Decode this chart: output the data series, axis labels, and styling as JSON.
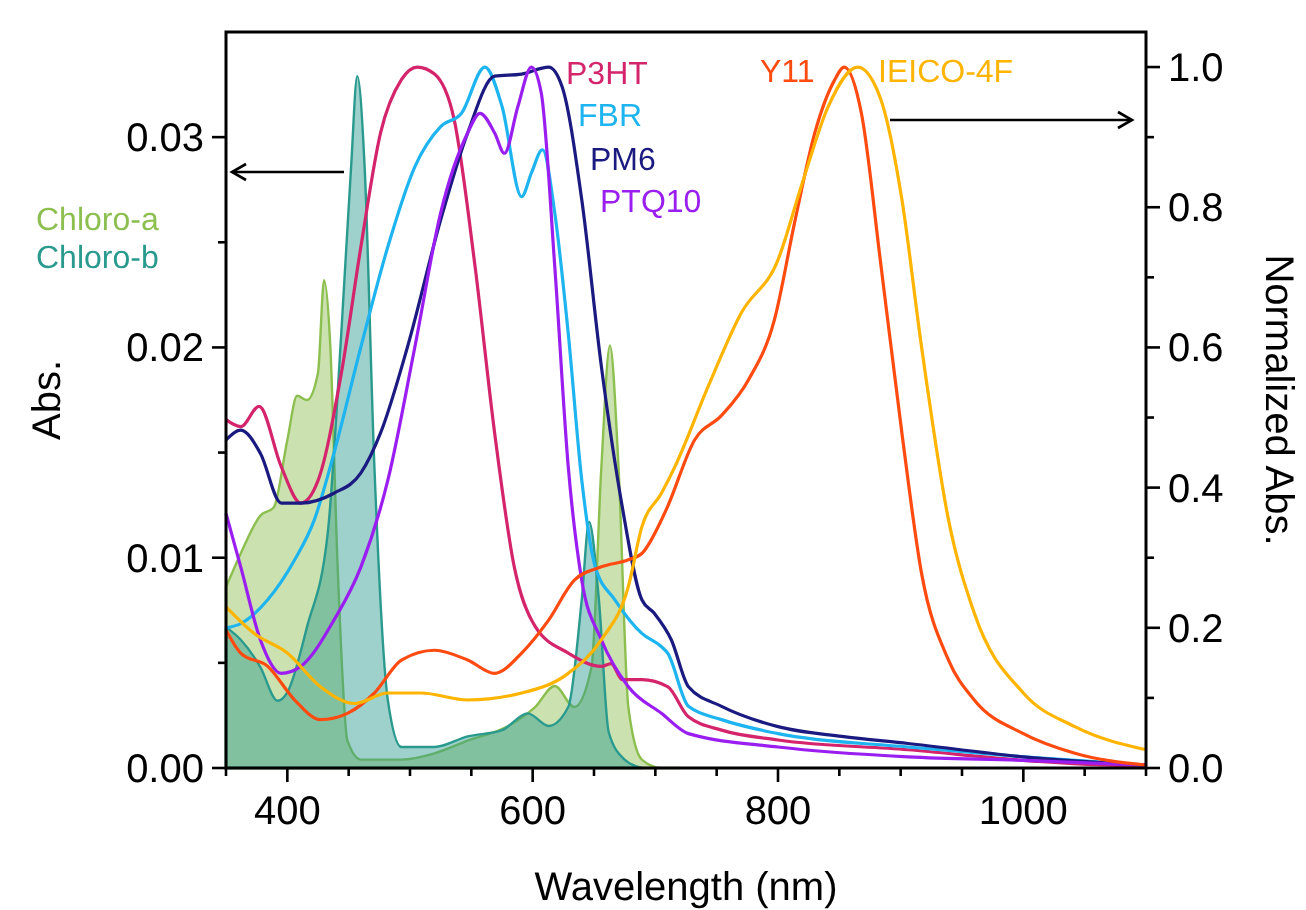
{
  "chart_data": {
    "type": "line",
    "xlabel": "Wavelength (nm)",
    "ylabel": "Abs.",
    "y2label": "Normalized Abs.",
    "xlim": [
      350,
      1100
    ],
    "xticks": [
      {
        "value": 350,
        "label": null
      },
      400,
      {
        "value": 450,
        "label": null
      },
      {
        "value": 500,
        "label": null
      },
      {
        "value": 550,
        "label": null
      },
      600,
      {
        "value": 650,
        "label": null
      },
      {
        "value": 700,
        "label": null
      },
      {
        "value": 750,
        "label": null
      },
      800,
      {
        "value": 850,
        "label": null
      },
      {
        "value": 900,
        "label": null
      },
      {
        "value": 950,
        "label": null
      },
      1000,
      {
        "value": 1050,
        "label": null
      },
      {
        "value": 1100,
        "label": null
      }
    ],
    "ylim": [
      0,
      0.035
    ],
    "yticks": [
      {
        "value": 0,
        "label": "0.00"
      },
      {
        "value": 0.005,
        "label": null
      },
      {
        "value": 0.01,
        "label": "0.01"
      },
      {
        "value": 0.015,
        "label": null
      },
      {
        "value": 0.02,
        "label": "0.02"
      },
      {
        "value": 0.025,
        "label": null
      },
      {
        "value": 0.03,
        "label": "0.03"
      }
    ],
    "y2lim": [
      0,
      1.05
    ],
    "y2ticks": [
      {
        "value": 0,
        "label": "0.0"
      },
      {
        "value": 0.1,
        "label": null
      },
      {
        "value": 0.2,
        "label": "0.2"
      },
      {
        "value": 0.3,
        "label": null
      },
      {
        "value": 0.4,
        "label": "0.4"
      },
      {
        "value": 0.5,
        "label": null
      },
      {
        "value": 0.6,
        "label": "0.6"
      },
      {
        "value": 0.7,
        "label": null
      },
      {
        "value": 0.8,
        "label": "0.8"
      },
      {
        "value": 0.9,
        "label": null
      },
      {
        "value": 1.0,
        "label": "1.0"
      }
    ],
    "grid": false,
    "legend": false,
    "series": [
      {
        "name": "Chloro-a",
        "type": "area",
        "color": "#8cbf4f",
        "x": [
          350,
          362,
          378,
          389,
          400,
          408,
          416,
          425,
          430,
          435,
          441,
          449,
          460,
          493,
          520,
          547,
          580,
          602,
          618,
          634,
          648,
          656,
          663,
          670,
          678,
          689,
          705,
          720
        ],
        "values": [
          0.0086,
          0.0102,
          0.012,
          0.0124,
          0.0156,
          0.0177,
          0.0175,
          0.0188,
          0.0232,
          0.0201,
          0.0096,
          0.0013,
          0.0004,
          0.0004,
          0.0007,
          0.0013,
          0.002,
          0.0029,
          0.0039,
          0.0029,
          0.0048,
          0.0143,
          0.0201,
          0.0143,
          0.0029,
          0.0004,
          0,
          0
        ]
      },
      {
        "name": "Chloro-b",
        "type": "area",
        "color": "#2a9a8e",
        "x": [
          350,
          362,
          378,
          392,
          400,
          416,
          433,
          444,
          452,
          457,
          463,
          471,
          482,
          493,
          520,
          547,
          575,
          596,
          613,
          629,
          640,
          646,
          654,
          662,
          675,
          689
        ],
        "values": [
          0.0067,
          0.0061,
          0.0048,
          0.0032,
          0.0036,
          0.0067,
          0.0112,
          0.0207,
          0.0286,
          0.0329,
          0.0286,
          0.0143,
          0.0032,
          0.001,
          0.001,
          0.0015,
          0.0018,
          0.0026,
          0.002,
          0.0029,
          0.008,
          0.0117,
          0.008,
          0.0017,
          0.0004,
          0
        ]
      },
      {
        "name": "P3HT",
        "axis": "y2",
        "color": "#d4246c",
        "x": [
          350,
          362,
          377,
          395,
          411,
          425,
          444,
          460,
          476,
          493,
          506,
          520,
          536,
          553,
          569,
          585,
          602,
          629,
          656,
          664,
          673,
          689,
          710,
          727,
          754,
          800,
          906,
          1000,
          1069,
          1100
        ],
        "values": [
          0.497,
          0.487,
          0.516,
          0.43,
          0.378,
          0.41,
          0.563,
          0.744,
          0.906,
          0.982,
          1.0,
          0.99,
          0.925,
          0.716,
          0.478,
          0.287,
          0.202,
          0.164,
          0.145,
          0.149,
          0.126,
          0.126,
          0.116,
          0.073,
          0.054,
          0.04,
          0.026,
          0.011,
          0.004,
          0.003
        ]
      },
      {
        "name": "FBR",
        "axis": "y2",
        "color": "#1eb4f0",
        "x": [
          350,
          362,
          384,
          406,
          422,
          438,
          460,
          482,
          504,
          525,
          542,
          561,
          575,
          591,
          599,
          608,
          618,
          629,
          640,
          651,
          667,
          689,
          705,
          710,
          727,
          754,
          800,
          906,
          1000,
          1100
        ],
        "values": [
          0.2,
          0.206,
          0.24,
          0.297,
          0.354,
          0.449,
          0.601,
          0.744,
          0.858,
          0.915,
          0.934,
          1.0,
          0.944,
          0.815,
          0.849,
          0.882,
          0.792,
          0.62,
          0.411,
          0.287,
          0.24,
          0.192,
          0.173,
          0.164,
          0.088,
          0.069,
          0.049,
          0.03,
          0.016,
          0.004
        ]
      },
      {
        "name": "PM6",
        "axis": "y2",
        "color": "#1a1a80",
        "x": [
          350,
          362,
          378,
          395,
          411,
          438,
          460,
          476,
          498,
          525,
          547,
          569,
          591,
          613,
          624,
          640,
          656,
          673,
          689,
          699,
          713,
          727,
          754,
          800,
          852,
          906,
          1000,
          1100
        ],
        "values": [
          0.468,
          0.482,
          0.449,
          0.378,
          0.378,
          0.392,
          0.421,
          0.478,
          0.601,
          0.782,
          0.906,
          0.987,
          0.99,
          1.0,
          0.972,
          0.811,
          0.573,
          0.373,
          0.24,
          0.221,
          0.183,
          0.116,
          0.088,
          0.059,
          0.045,
          0.035,
          0.016,
          0.004
        ]
      },
      {
        "name": "PTQ10",
        "axis": "y2",
        "color": "#9b1ef0",
        "x": [
          350,
          362,
          378,
          395,
          411,
          438,
          460,
          482,
          504,
          525,
          547,
          557,
          569,
          577,
          588,
          599,
          607,
          618,
          629,
          640,
          656,
          678,
          705,
          727,
          800,
          906,
          1000,
          1100
        ],
        "values": [
          0.363,
          0.287,
          0.183,
          0.135,
          0.145,
          0.211,
          0.287,
          0.411,
          0.601,
          0.792,
          0.906,
          0.934,
          0.906,
          0.877,
          0.944,
          1.0,
          0.963,
          0.716,
          0.43,
          0.268,
          0.183,
          0.116,
          0.078,
          0.049,
          0.03,
          0.016,
          0.011,
          0.004
        ]
      },
      {
        "name": "Y11",
        "axis": "y2",
        "color": "#ff4a10",
        "x": [
          350,
          362,
          384,
          406,
          427,
          449,
          471,
          493,
          520,
          547,
          569,
          591,
          613,
          634,
          656,
          678,
          689,
          705,
          710,
          732,
          754,
          776,
          797,
          814,
          830,
          846,
          854,
          868,
          884,
          901,
          917,
          939,
          960,
          1000,
          1042,
          1100
        ],
        "values": [
          0.197,
          0.164,
          0.145,
          0.097,
          0.069,
          0.078,
          0.107,
          0.154,
          0.168,
          0.154,
          0.135,
          0.164,
          0.211,
          0.268,
          0.287,
          0.297,
          0.306,
          0.354,
          0.373,
          0.468,
          0.503,
          0.554,
          0.639,
          0.782,
          0.906,
          0.981,
          1.0,
          0.934,
          0.716,
          0.478,
          0.278,
          0.154,
          0.097,
          0.049,
          0.021,
          0.004
        ]
      },
      {
        "name": "IEICO-4F",
        "axis": "y2",
        "color": "#ffb400",
        "x": [
          350,
          373,
          400,
          427,
          455,
          482,
          509,
          547,
          591,
          629,
          656,
          678,
          689,
          705,
          716,
          743,
          770,
          800,
          819,
          841,
          865,
          884,
          901,
          917,
          939,
          960,
          1000,
          1042,
          1100
        ],
        "values": [
          0.23,
          0.192,
          0.164,
          0.116,
          0.092,
          0.107,
          0.107,
          0.097,
          0.107,
          0.135,
          0.183,
          0.259,
          0.344,
          0.392,
          0.43,
          0.544,
          0.649,
          0.725,
          0.83,
          0.944,
          1.0,
          0.953,
          0.811,
          0.601,
          0.354,
          0.221,
          0.107,
          0.059,
          0.026
        ]
      }
    ]
  }
}
